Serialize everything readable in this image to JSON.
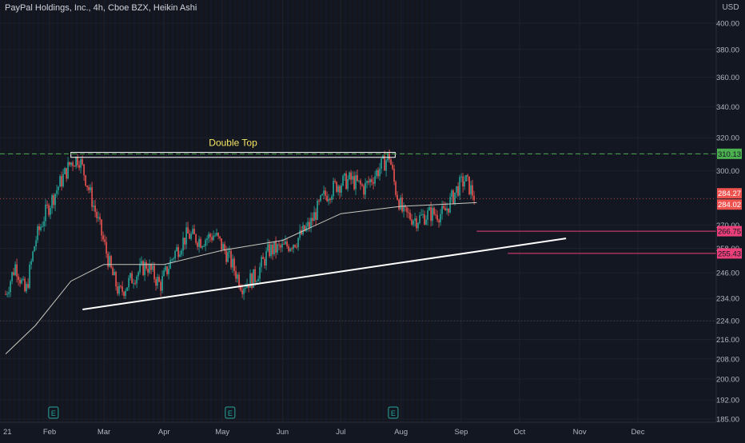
{
  "header": {
    "title": "PayPal Holdings, Inc., 4h, Cboe BZX, Heikin Ashi",
    "currency": "USD"
  },
  "colors": {
    "background": "#131722",
    "grid": "#1e222d",
    "bull": "#26a69a",
    "bear": "#ef5350",
    "ma": "#c8c8c0",
    "trendline": "#ffffff",
    "annotation_text": "#f5e663",
    "resistance": "#4caf50",
    "support": "#ec407a",
    "axis_text": "#b2b5be"
  },
  "chart_data": {
    "type": "candlestick",
    "y_scale": "log",
    "ylim": [
      185,
      400
    ],
    "x_axis_labels": [
      "21",
      "Feb",
      "Mar",
      "Apr",
      "May",
      "Jun",
      "Jul",
      "Aug",
      "Sep",
      "Oct",
      "Nov",
      "Dec"
    ],
    "y_axis_labels": [
      "400.00",
      "380.00",
      "360.00",
      "340.00",
      "320.00",
      "300.00",
      "270.00",
      "258.00",
      "246.00",
      "234.00",
      "224.00",
      "216.00",
      "208.00",
      "200.00",
      "192.00",
      "185.00"
    ],
    "price_path": [
      {
        "date": "2021-01-01",
        "price": 236
      },
      {
        "date": "2021-01-08",
        "price": 250
      },
      {
        "date": "2021-01-15",
        "price": 236
      },
      {
        "date": "2021-01-22",
        "price": 262
      },
      {
        "date": "2021-01-29",
        "price": 276
      },
      {
        "date": "2021-02-05",
        "price": 290
      },
      {
        "date": "2021-02-12",
        "price": 305
      },
      {
        "date": "2021-02-16",
        "price": 308
      },
      {
        "date": "2021-02-19",
        "price": 298
      },
      {
        "date": "2021-02-26",
        "price": 272
      },
      {
        "date": "2021-03-05",
        "price": 246
      },
      {
        "date": "2021-03-09",
        "price": 236
      },
      {
        "date": "2021-03-16",
        "price": 244
      },
      {
        "date": "2021-03-23",
        "price": 250
      },
      {
        "date": "2021-03-30",
        "price": 240
      },
      {
        "date": "2021-04-06",
        "price": 255
      },
      {
        "date": "2021-04-13",
        "price": 265
      },
      {
        "date": "2021-04-20",
        "price": 262
      },
      {
        "date": "2021-04-27",
        "price": 265
      },
      {
        "date": "2021-05-04",
        "price": 254
      },
      {
        "date": "2021-05-11",
        "price": 240
      },
      {
        "date": "2021-05-18",
        "price": 244
      },
      {
        "date": "2021-05-25",
        "price": 257
      },
      {
        "date": "2021-06-01",
        "price": 258
      },
      {
        "date": "2021-06-08",
        "price": 262
      },
      {
        "date": "2021-06-15",
        "price": 270
      },
      {
        "date": "2021-06-22",
        "price": 285
      },
      {
        "date": "2021-06-29",
        "price": 292
      },
      {
        "date": "2021-07-06",
        "price": 295
      },
      {
        "date": "2021-07-13",
        "price": 290
      },
      {
        "date": "2021-07-20",
        "price": 300
      },
      {
        "date": "2021-07-26",
        "price": 309
      },
      {
        "date": "2021-07-29",
        "price": 290
      },
      {
        "date": "2021-08-02",
        "price": 276
      },
      {
        "date": "2021-08-09",
        "price": 273
      },
      {
        "date": "2021-08-16",
        "price": 276
      },
      {
        "date": "2021-08-23",
        "price": 276
      },
      {
        "date": "2021-08-30",
        "price": 290
      },
      {
        "date": "2021-09-03",
        "price": 295
      },
      {
        "date": "2021-09-08",
        "price": 285
      }
    ],
    "moving_average": [
      {
        "date": "2021-01-01",
        "price": 210
      },
      {
        "date": "2021-01-22",
        "price": 222
      },
      {
        "date": "2021-02-12",
        "price": 242
      },
      {
        "date": "2021-03-01",
        "price": 250
      },
      {
        "date": "2021-04-01",
        "price": 250
      },
      {
        "date": "2021-05-01",
        "price": 257
      },
      {
        "date": "2021-06-01",
        "price": 262
      },
      {
        "date": "2021-07-01",
        "price": 276
      },
      {
        "date": "2021-08-01",
        "price": 280
      },
      {
        "date": "2021-09-09",
        "price": 282
      }
    ],
    "annotations": {
      "pattern_label": "Double Top",
      "double_top_zone": {
        "start": "2021-02-12",
        "end": "2021-07-29",
        "low": 308,
        "high": 311
      },
      "trendline": {
        "start": {
          "date": "2021-02-18",
          "price": 229
        },
        "end": {
          "date": "2021-10-25",
          "price": 263
        }
      },
      "horizontal_levels": [
        {
          "value": "310.13",
          "style": "dashed",
          "color": "resistance"
        },
        {
          "value": "266.75",
          "style": "solid",
          "color": "support",
          "start": "2021-09-09"
        },
        {
          "value": "255.43",
          "style": "solid",
          "color": "support",
          "start": "2021-09-25"
        }
      ],
      "price_labels": [
        "284.27",
        "284.02"
      ],
      "earnings_marker": "E",
      "earnings_dates": [
        "2021-02-03",
        "2021-05-05",
        "2021-07-28"
      ]
    }
  }
}
